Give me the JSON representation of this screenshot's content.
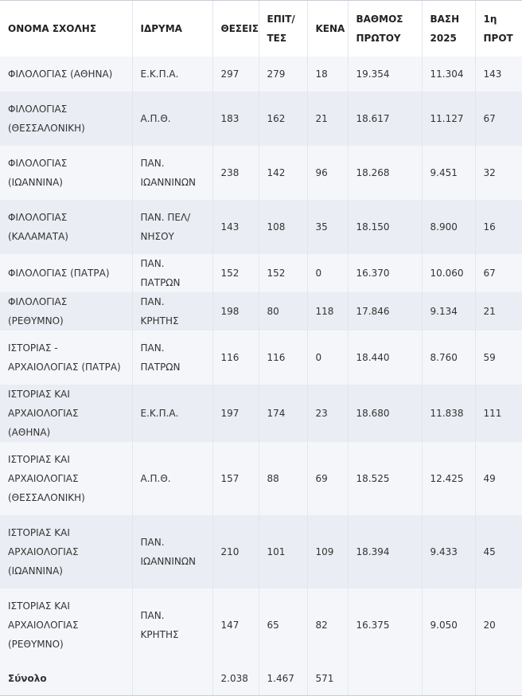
{
  "headers": [
    "ΟΝΟΜΑ ΣΧΟΛΗΣ",
    "ΙΔΡΥΜΑ",
    "ΘΕΣΕΙΣ",
    "ΕΠΙΤ/ ΤΕΣ",
    "ΚΕΝΑ",
    "ΒΑΘΜΟΣ ΠΡΩΤΟΥ",
    "ΒΑΣΗ 2025",
    "1η ΠΡΟΤ"
  ],
  "rows": [
    [
      "ΦΙΛΟΛΟΓΙΑΣ (ΑΘΗΝΑ)",
      "Ε.Κ.Π.Α.",
      "297",
      "279",
      "18",
      "19.354",
      "11.304",
      "143"
    ],
    [
      "ΦΙΛΟΛΟΓΙΑΣ (ΘΕΣΣΑΛΟΝΙΚΗ)",
      "Α.Π.Θ.",
      "183",
      "162",
      "21",
      "18.617",
      "11.127",
      "67"
    ],
    [
      "ΦΙΛΟΛΟΓΙΑΣ (ΙΩΑΝΝΙΝΑ)",
      "ΠΑΝ. ΙΩΑΝΝΙΝΩΝ",
      "238",
      "142",
      "96",
      "18.268",
      "9.451",
      "32"
    ],
    [
      "ΦΙΛΟΛΟΓΙΑΣ (ΚΑΛΑΜΑΤΑ)",
      "ΠΑΝ. ΠΕΛ/ ΝΗΣΟΥ",
      "143",
      "108",
      "35",
      "18.150",
      "8.900",
      "16"
    ],
    [
      "ΦΙΛΟΛΟΓΙΑΣ (ΠΑΤΡΑ)",
      "ΠΑΝ. ΠΑΤΡΩΝ",
      "152",
      "152",
      "0",
      "16.370",
      "10.060",
      "67"
    ],
    [
      "ΦΙΛΟΛΟΓΙΑΣ (ΡΕΘΥΜΝΟ)",
      "ΠΑΝ. ΚΡΗΤΗΣ",
      "198",
      "80",
      "118",
      "17.846",
      "9.134",
      "21"
    ],
    [
      "ΙΣΤΟΡΙΑΣ - ΑΡΧΑΙΟΛΟΓΙΑΣ (ΠΑΤΡΑ)",
      "ΠΑΝ. ΠΑΤΡΩΝ",
      "116",
      "116",
      "0",
      "18.440",
      "8.760",
      "59"
    ],
    [
      "ΙΣΤΟΡΙΑΣ ΚΑΙ ΑΡΧΑΙΟΛΟΓΙΑΣ (ΑΘΗΝΑ)",
      "Ε.Κ.Π.Α.",
      "197",
      "174",
      "23",
      "18.680",
      "11.838",
      "111"
    ],
    [
      "ΙΣΤΟΡΙΑΣ ΚΑΙ ΑΡΧΑΙΟΛΟΓΙΑΣ (ΘΕΣΣΑΛΟΝΙΚΗ)",
      "Α.Π.Θ.",
      "157",
      "88",
      "69",
      "18.525",
      "12.425",
      "49"
    ],
    [
      "ΙΣΤΟΡΙΑΣ ΚΑΙ ΑΡΧΑΙΟΛΟΓΙΑΣ (ΙΩΑΝΝΙΝΑ)",
      "ΠΑΝ. ΙΩΑΝΝΙΝΩΝ",
      "210",
      "101",
      "109",
      "18.394",
      "9.433",
      "45"
    ],
    [
      "ΙΣΤΟΡΙΑΣ ΚΑΙ ΑΡΧΑΙΟΛΟΓΙΑΣ (ΡΕΘΥΜΝΟ)",
      "ΠΑΝ. ΚΡΗΤΗΣ",
      "147",
      "65",
      "82",
      "16.375",
      "9.050",
      "20"
    ]
  ],
  "total": [
    "Σύνολο",
    "",
    "2.038",
    "1.467",
    "571",
    "",
    "",
    ""
  ]
}
